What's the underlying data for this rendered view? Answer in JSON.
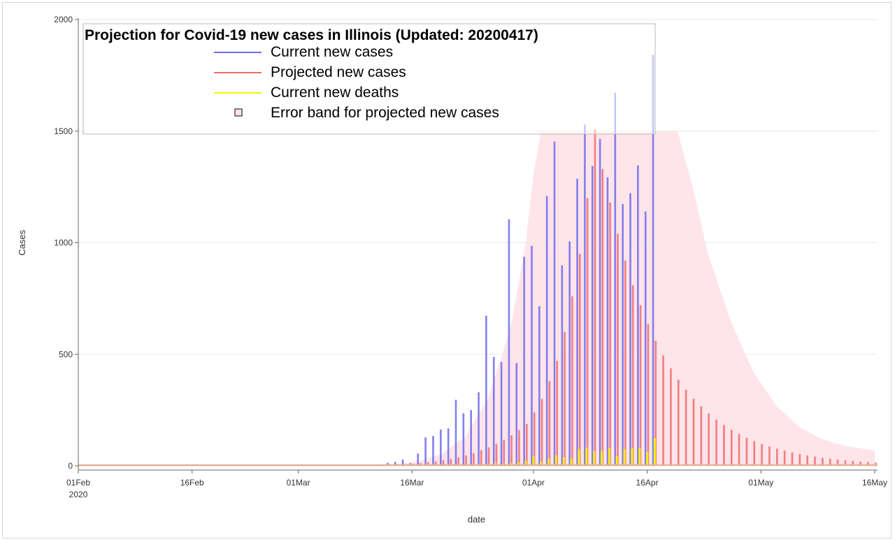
{
  "chart_data": {
    "type": "bar",
    "title": "Projection for Covid-19 new cases in Illinois (Updated: 20200417)",
    "xlabel": "date",
    "ylabel": "Cases",
    "ylim": [
      0,
      2000
    ],
    "yticks": [
      0,
      500,
      1000,
      1500,
      2000
    ],
    "xlim": [
      "2020-02-01",
      "2020-05-16"
    ],
    "xticks": [
      {
        "date": "2020-02-01",
        "label": "01Feb",
        "sublabel": "2020"
      },
      {
        "date": "2020-02-16",
        "label": "16Feb"
      },
      {
        "date": "2020-03-01",
        "label": "01Mar"
      },
      {
        "date": "2020-03-16",
        "label": "16Mar"
      },
      {
        "date": "2020-04-01",
        "label": "01Apr"
      },
      {
        "date": "2020-04-16",
        "label": "16Apr"
      },
      {
        "date": "2020-05-01",
        "label": "01May"
      },
      {
        "date": "2020-05-16",
        "label": "16May"
      }
    ],
    "grid": true,
    "legend_position": "top-left",
    "legend": [
      {
        "label": "Current new cases",
        "color": "#6b6bf0",
        "symbol": "line"
      },
      {
        "label": "Projected new cases",
        "color": "#f06b6b",
        "symbol": "line"
      },
      {
        "label": "Current new deaths",
        "color": "#f5f500",
        "symbol": "line"
      },
      {
        "label": "Error band for projected new cases",
        "color": "#ffe4e9",
        "symbol": "square"
      }
    ],
    "series": [
      {
        "name": "Current new cases",
        "color": "#6b6bf0",
        "points": [
          [
            "2020-03-09",
            2
          ],
          [
            "2020-03-10",
            3
          ],
          [
            "2020-03-11",
            6
          ],
          [
            "2020-03-12",
            7
          ],
          [
            "2020-03-13",
            14
          ],
          [
            "2020-03-14",
            18
          ],
          [
            "2020-03-15",
            29
          ],
          [
            "2020-03-16",
            12
          ],
          [
            "2020-03-17",
            55
          ],
          [
            "2020-03-18",
            128
          ],
          [
            "2020-03-19",
            134
          ],
          [
            "2020-03-20",
            163
          ],
          [
            "2020-03-21",
            168
          ],
          [
            "2020-03-22",
            296
          ],
          [
            "2020-03-23",
            236
          ],
          [
            "2020-03-24",
            250
          ],
          [
            "2020-03-25",
            330
          ],
          [
            "2020-03-26",
            673
          ],
          [
            "2020-03-27",
            488
          ],
          [
            "2020-03-28",
            465
          ],
          [
            "2020-03-29",
            1105
          ],
          [
            "2020-03-30",
            461
          ],
          [
            "2020-03-31",
            937
          ],
          [
            "2020-04-01",
            986
          ],
          [
            "2020-04-02",
            715
          ],
          [
            "2020-04-03",
            1209
          ],
          [
            "2020-04-04",
            1453
          ],
          [
            "2020-04-05",
            899
          ],
          [
            "2020-04-06",
            1006
          ],
          [
            "2020-04-07",
            1287
          ],
          [
            "2020-04-08",
            1529
          ],
          [
            "2020-04-09",
            1344
          ],
          [
            "2020-04-10",
            1465
          ],
          [
            "2020-04-11",
            1293
          ],
          [
            "2020-04-12",
            1672
          ],
          [
            "2020-04-13",
            1173
          ],
          [
            "2020-04-14",
            1222
          ],
          [
            "2020-04-15",
            1346
          ],
          [
            "2020-04-16",
            1140
          ],
          [
            "2020-04-17",
            1842
          ]
        ]
      },
      {
        "name": "Projected new cases",
        "color": "#f06b6b",
        "points": [
          [
            "2020-03-15",
            6
          ],
          [
            "2020-03-16",
            9
          ],
          [
            "2020-03-17",
            12
          ],
          [
            "2020-03-18",
            16
          ],
          [
            "2020-03-19",
            20
          ],
          [
            "2020-03-20",
            25
          ],
          [
            "2020-03-21",
            31
          ],
          [
            "2020-03-22",
            38
          ],
          [
            "2020-03-23",
            47
          ],
          [
            "2020-03-24",
            57
          ],
          [
            "2020-03-25",
            70
          ],
          [
            "2020-03-26",
            83
          ],
          [
            "2020-03-27",
            98
          ],
          [
            "2020-03-28",
            116
          ],
          [
            "2020-03-29",
            137
          ],
          [
            "2020-03-30",
            160
          ],
          [
            "2020-03-31",
            188
          ],
          [
            "2020-04-01",
            240
          ],
          [
            "2020-04-02",
            300
          ],
          [
            "2020-04-03",
            380
          ],
          [
            "2020-04-04",
            470
          ],
          [
            "2020-04-05",
            600
          ],
          [
            "2020-04-06",
            760
          ],
          [
            "2020-04-07",
            950
          ],
          [
            "2020-04-08",
            1200
          ],
          [
            "2020-04-09",
            1510
          ],
          [
            "2020-04-10",
            1330
          ],
          [
            "2020-04-11",
            1180
          ],
          [
            "2020-04-12",
            1040
          ],
          [
            "2020-04-13",
            920
          ],
          [
            "2020-04-14",
            810
          ],
          [
            "2020-04-15",
            720
          ],
          [
            "2020-04-16",
            635
          ],
          [
            "2020-04-17",
            560
          ],
          [
            "2020-04-18",
            495
          ],
          [
            "2020-04-19",
            437
          ],
          [
            "2020-04-20",
            386
          ],
          [
            "2020-04-21",
            341
          ],
          [
            "2020-04-22",
            301
          ],
          [
            "2020-04-23",
            266
          ],
          [
            "2020-04-24",
            235
          ],
          [
            "2020-04-25",
            207
          ],
          [
            "2020-04-26",
            183
          ],
          [
            "2020-04-27",
            162
          ],
          [
            "2020-04-28",
            143
          ],
          [
            "2020-04-29",
            126
          ],
          [
            "2020-04-30",
            111
          ],
          [
            "2020-05-01",
            98
          ],
          [
            "2020-05-02",
            87
          ],
          [
            "2020-05-03",
            77
          ],
          [
            "2020-05-04",
            68
          ],
          [
            "2020-05-05",
            60
          ],
          [
            "2020-05-06",
            53
          ],
          [
            "2020-05-07",
            47
          ],
          [
            "2020-05-08",
            41
          ],
          [
            "2020-05-09",
            36
          ],
          [
            "2020-05-10",
            32
          ],
          [
            "2020-05-11",
            28
          ],
          [
            "2020-05-12",
            25
          ],
          [
            "2020-05-13",
            22
          ],
          [
            "2020-05-14",
            19
          ],
          [
            "2020-05-15",
            17
          ],
          [
            "2020-05-16",
            15
          ]
        ]
      },
      {
        "name": "Current new deaths",
        "color": "#f5f500",
        "points": [
          [
            "2020-03-25",
            5
          ],
          [
            "2020-03-26",
            7
          ],
          [
            "2020-03-27",
            13
          ],
          [
            "2020-03-28",
            8
          ],
          [
            "2020-03-29",
            12
          ],
          [
            "2020-03-30",
            16
          ],
          [
            "2020-03-31",
            22
          ],
          [
            "2020-04-01",
            43
          ],
          [
            "2020-04-02",
            19
          ],
          [
            "2020-04-03",
            32
          ],
          [
            "2020-04-04",
            48
          ],
          [
            "2020-04-05",
            40
          ],
          [
            "2020-04-06",
            33
          ],
          [
            "2020-04-07",
            74
          ],
          [
            "2020-04-08",
            82
          ],
          [
            "2020-04-09",
            66
          ],
          [
            "2020-04-10",
            68
          ],
          [
            "2020-04-11",
            81
          ],
          [
            "2020-04-12",
            43
          ],
          [
            "2020-04-13",
            74
          ],
          [
            "2020-04-14",
            80
          ],
          [
            "2020-04-15",
            80
          ],
          [
            "2020-04-16",
            62
          ],
          [
            "2020-04-17",
            125
          ]
        ]
      }
    ],
    "error_band": {
      "name": "Error band for projected new cases",
      "color": "#ffe4e9",
      "cap": 1500,
      "lower": 0,
      "upper": [
        [
          "2020-03-10",
          2
        ],
        [
          "2020-03-14",
          8
        ],
        [
          "2020-03-17",
          22
        ],
        [
          "2020-03-20",
          55
        ],
        [
          "2020-03-23",
          130
        ],
        [
          "2020-03-26",
          300
        ],
        [
          "2020-03-29",
          620
        ],
        [
          "2020-03-31",
          1000
        ],
        [
          "2020-04-01",
          1300
        ],
        [
          "2020-04-02",
          1500
        ],
        [
          "2020-04-20",
          1500
        ],
        [
          "2020-04-22",
          1250
        ],
        [
          "2020-04-24",
          950
        ],
        [
          "2020-04-27",
          650
        ],
        [
          "2020-04-30",
          420
        ],
        [
          "2020-05-03",
          270
        ],
        [
          "2020-05-06",
          175
        ],
        [
          "2020-05-09",
          120
        ],
        [
          "2020-05-12",
          90
        ],
        [
          "2020-05-16",
          68
        ]
      ]
    }
  }
}
